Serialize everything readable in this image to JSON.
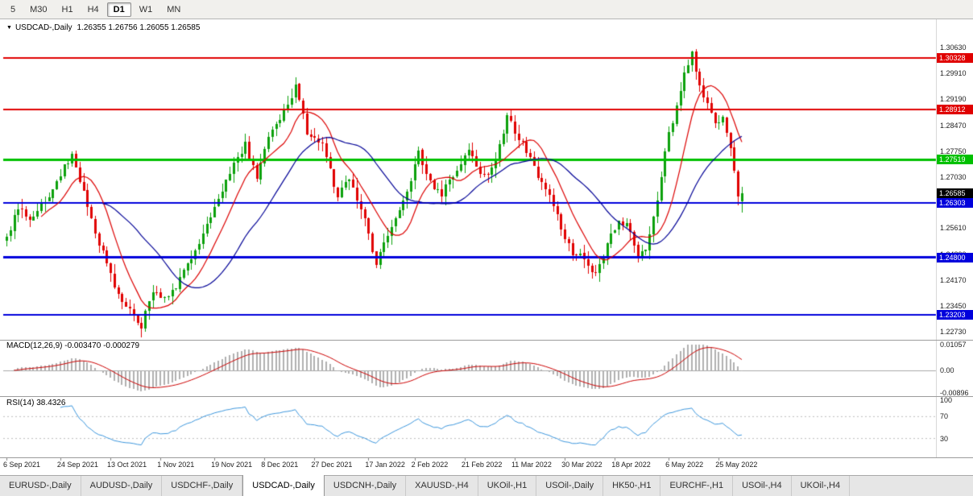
{
  "toolbar": {
    "timeframes": [
      "5",
      "M30",
      "H1",
      "H4",
      "D1",
      "W1",
      "MN"
    ],
    "active": "D1"
  },
  "chart": {
    "header": {
      "caret": "▼",
      "symbol": "USDCAD-,Daily",
      "ohlc": "1.26355 1.26756 1.26055 1.26585"
    }
  },
  "macd_panel": {
    "label": "MACD(12,26,9) -0.003470 -0.000279",
    "ticks": [
      {
        "label": "0.01057",
        "value": 0.01057
      },
      {
        "label": "0.00",
        "value": 0
      },
      {
        "label": "-0.00896",
        "value": -0.00896
      }
    ]
  },
  "rsi_panel": {
    "label": "RSI(14) 38.4326",
    "ticks": [
      {
        "label": "100",
        "value": 100
      },
      {
        "label": "70",
        "value": 70
      },
      {
        "label": "30",
        "value": 30
      }
    ]
  },
  "tabs": {
    "active": "USDCAD-,Daily",
    "items": [
      "EURUSD-,Daily",
      "AUDUSD-,Daily",
      "USDCHF-,Daily",
      "USDCAD-,Daily",
      "USDCNH-,Daily",
      "XAUUSD-,H4",
      "UKOil-,H1",
      "USOil-,Daily",
      "HK50-,H1",
      "EURCHF-,H1",
      "USOil-,H4",
      "UKOil-,H4"
    ],
    "separator": "|"
  },
  "chart_data": {
    "type": "candlestick",
    "title": "USDCAD-,Daily",
    "timeframe": "Daily",
    "last_ohlc": {
      "open": 1.26355,
      "high": 1.26756,
      "low": 1.26055,
      "close": 1.26585
    },
    "current_price": {
      "value": "1.26585",
      "price": 1.26585,
      "bg": "#000000"
    },
    "y_range": [
      1.22534,
      1.3139
    ],
    "y_ticks": [
      "1.30630",
      "1.29910",
      "1.29190",
      "1.28470",
      "1.27750",
      "1.27030",
      "1.26310",
      "1.25610",
      "1.24890",
      "1.24170",
      "1.23450",
      "1.22730"
    ],
    "x_ticks": [
      {
        "label": "6 Sep 2021",
        "index": 0
      },
      {
        "label": "24 Sep 2021",
        "index": 14
      },
      {
        "label": "13 Oct 2021",
        "index": 27
      },
      {
        "label": "1 Nov 2021",
        "index": 40
      },
      {
        "label": "19 Nov 2021",
        "index": 54
      },
      {
        "label": "8 Dec 2021",
        "index": 67
      },
      {
        "label": "27 Dec 2021",
        "index": 80
      },
      {
        "label": "17 Jan 2022",
        "index": 94
      },
      {
        "label": "2 Feb 2022",
        "index": 106
      },
      {
        "label": "21 Feb 2022",
        "index": 119
      },
      {
        "label": "11 Mar 2022",
        "index": 132
      },
      {
        "label": "30 Mar 2022",
        "index": 145
      },
      {
        "label": "18 Apr 2022",
        "index": 158
      },
      {
        "label": "6 May 2022",
        "index": 172
      },
      {
        "label": "25 May 2022",
        "index": 185
      }
    ],
    "levels": [
      {
        "value": "1.30328",
        "price": 1.30328,
        "color": "#e00000",
        "line_width": 2,
        "type": "resistance"
      },
      {
        "value": "1.28912",
        "price": 1.28912,
        "color": "#e00000",
        "line_width": 2,
        "type": "resistance"
      },
      {
        "value": "1.27519",
        "price": 1.27519,
        "color": "#00c000",
        "line_width": 3,
        "type": "pivot"
      },
      {
        "value": "1.26303",
        "price": 1.26303,
        "color": "#0000dc",
        "line_width": 2,
        "type": "support"
      },
      {
        "value": "1.24800",
        "price": 1.248,
        "color": "#0000dc",
        "line_width": 3,
        "type": "support"
      },
      {
        "value": "1.23203",
        "price": 1.23203,
        "color": "#0000dc",
        "line_width": 2,
        "type": "support"
      }
    ],
    "num_candles": 192,
    "price_waypoints": [
      [
        0,
        1.2535
      ],
      [
        3,
        1.2625
      ],
      [
        6,
        1.2585
      ],
      [
        10,
        1.264
      ],
      [
        13,
        1.269
      ],
      [
        17,
        1.277
      ],
      [
        20,
        1.266
      ],
      [
        24,
        1.252
      ],
      [
        28,
        1.24
      ],
      [
        32,
        1.233
      ],
      [
        35,
        1.2292
      ],
      [
        38,
        1.2385
      ],
      [
        41,
        1.236
      ],
      [
        44,
        1.2405
      ],
      [
        47,
        1.2455
      ],
      [
        51,
        1.2545
      ],
      [
        55,
        1.2635
      ],
      [
        58,
        1.272
      ],
      [
        62,
        1.279
      ],
      [
        65,
        1.27
      ],
      [
        68,
        1.2805
      ],
      [
        72,
        1.289
      ],
      [
        75,
        1.295
      ],
      [
        78,
        1.283
      ],
      [
        82,
        1.2795
      ],
      [
        86,
        1.265
      ],
      [
        89,
        1.27
      ],
      [
        93,
        1.259
      ],
      [
        96,
        1.2465
      ],
      [
        100,
        1.2555
      ],
      [
        104,
        1.2665
      ],
      [
        107,
        1.2775
      ],
      [
        110,
        1.269
      ],
      [
        113,
        1.2655
      ],
      [
        117,
        1.2725
      ],
      [
        120,
        1.277
      ],
      [
        124,
        1.2705
      ],
      [
        127,
        1.2745
      ],
      [
        130,
        1.287
      ],
      [
        133,
        1.2815
      ],
      [
        137,
        1.2725
      ],
      [
        141,
        1.2645
      ],
      [
        144,
        1.2565
      ],
      [
        147,
        1.2495
      ],
      [
        150,
        1.2475
      ],
      [
        153,
        1.2432
      ],
      [
        156,
        1.252
      ],
      [
        159,
        1.2585
      ],
      [
        162,
        1.2555
      ],
      [
        164,
        1.2485
      ],
      [
        166,
        1.2505
      ],
      [
        168,
        1.2585
      ],
      [
        170,
        1.2705
      ],
      [
        172,
        1.2825
      ],
      [
        174,
        1.2895
      ],
      [
        176,
        1.2995
      ],
      [
        178,
        1.3042
      ],
      [
        180,
        1.2965
      ],
      [
        182,
        1.2905
      ],
      [
        184,
        1.2845
      ],
      [
        186,
        1.2872
      ],
      [
        188,
        1.279
      ],
      [
        189,
        1.272
      ],
      [
        190,
        1.2645
      ],
      [
        191,
        1.26585
      ]
    ],
    "indicators": {
      "ma_fast": {
        "period": 10,
        "color": "#dc0000"
      },
      "ma_slow": {
        "period": 26,
        "color": "#000096"
      },
      "macd": {
        "fast": 12,
        "slow": 26,
        "signal": 9,
        "current_macd": -0.00347,
        "current_signal": -0.000279,
        "scale_max": 0.01057,
        "scale_min": -0.00896,
        "hist_color": "#b0b0b0",
        "signal_color": "#cc0000"
      },
      "rsi": {
        "period": 14,
        "current": 38.4326,
        "levels": [
          70,
          30
        ],
        "line_color": "#3c96dc"
      }
    },
    "colors": {
      "up": "#0ca10c",
      "down": "#e00000",
      "background": "#ffffff"
    }
  }
}
